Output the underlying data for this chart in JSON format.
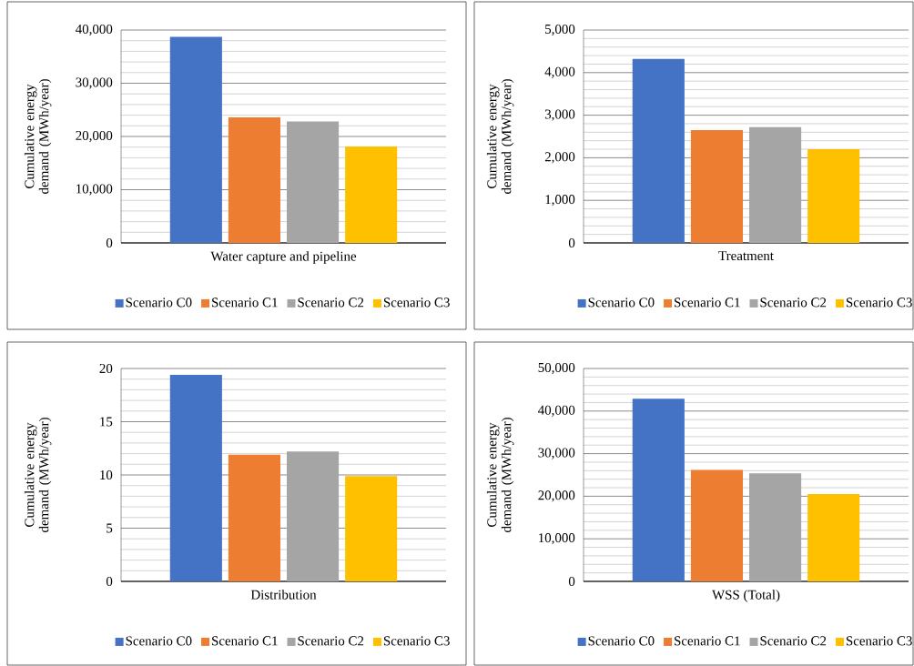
{
  "chart_data": [
    {
      "type": "bar",
      "categories": [
        "Water capture and pipeline"
      ],
      "ylabel": "Cumulative energy demand (MWh/year)",
      "ylim": [
        0,
        40000
      ],
      "yticks": [
        0,
        {
          "value": 10000,
          "label": "10,000"
        },
        {
          "value": 20000,
          "label": "20,000"
        },
        {
          "value": 30000,
          "label": "30,000"
        },
        {
          "value": 40000,
          "label": "40,000"
        }
      ],
      "grid": "y",
      "legend": "bottom",
      "series": [
        {
          "name": "Scenario C0",
          "color": "#4472c4",
          "values": [
            38700
          ]
        },
        {
          "name": "Scenario C1",
          "color": "#ed7d31",
          "values": [
            23600
          ]
        },
        {
          "name": "Scenario C2",
          "color": "#a5a5a5",
          "values": [
            22800
          ]
        },
        {
          "name": "Scenario C3",
          "color": "#ffc000",
          "values": [
            18100
          ]
        }
      ]
    },
    {
      "type": "bar",
      "categories": [
        "Treatment"
      ],
      "ylabel": "Cumulative energy demand (MWh/year)",
      "ylim": [
        0,
        5000
      ],
      "yticks": [
        0,
        {
          "value": 1000,
          "label": "1,000"
        },
        {
          "value": 2000,
          "label": "2,000"
        },
        {
          "value": 3000,
          "label": "3,000"
        },
        {
          "value": 4000,
          "label": "4,000"
        },
        {
          "value": 5000,
          "label": "5,000"
        }
      ],
      "grid": "y",
      "legend": "bottom",
      "series": [
        {
          "name": "Scenario C0",
          "color": "#4472c4",
          "values": [
            4320
          ]
        },
        {
          "name": "Scenario C1",
          "color": "#ed7d31",
          "values": [
            2650
          ]
        },
        {
          "name": "Scenario C2",
          "color": "#a5a5a5",
          "values": [
            2720
          ]
        },
        {
          "name": "Scenario C3",
          "color": "#ffc000",
          "values": [
            2200
          ]
        }
      ]
    },
    {
      "type": "bar",
      "categories": [
        "Distribution"
      ],
      "ylabel": "Cumulative energy demand (MWh/year)",
      "ylim": [
        0,
        20
      ],
      "yticks": [
        0,
        5,
        10,
        15,
        20
      ],
      "grid": "y",
      "legend": "bottom",
      "series": [
        {
          "name": "Scenario C0",
          "color": "#4472c4",
          "values": [
            19.4
          ]
        },
        {
          "name": "Scenario C1",
          "color": "#ed7d31",
          "values": [
            11.9
          ]
        },
        {
          "name": "Scenario C2",
          "color": "#a5a5a5",
          "values": [
            12.2
          ]
        },
        {
          "name": "Scenario C3",
          "color": "#ffc000",
          "values": [
            9.9
          ]
        }
      ]
    },
    {
      "type": "bar",
      "categories": [
        "WSS (Total)"
      ],
      "ylabel": "Cumulative energy demand (MWh/year)",
      "ylim": [
        0,
        50000
      ],
      "yticks": [
        0,
        {
          "value": 10000,
          "label": "10,000"
        },
        {
          "value": 20000,
          "label": "20,000"
        },
        {
          "value": 30000,
          "label": "30,000"
        },
        {
          "value": 40000,
          "label": "40,000"
        },
        {
          "value": 50000,
          "label": "50,000"
        }
      ],
      "grid": "y",
      "legend": "bottom",
      "series": [
        {
          "name": "Scenario C0",
          "color": "#4472c4",
          "values": [
            42900
          ]
        },
        {
          "name": "Scenario C1",
          "color": "#ed7d31",
          "values": [
            26200
          ]
        },
        {
          "name": "Scenario C2",
          "color": "#a5a5a5",
          "values": [
            25400
          ]
        },
        {
          "name": "Scenario C3",
          "color": "#ffc000",
          "values": [
            20500
          ]
        }
      ]
    }
  ]
}
